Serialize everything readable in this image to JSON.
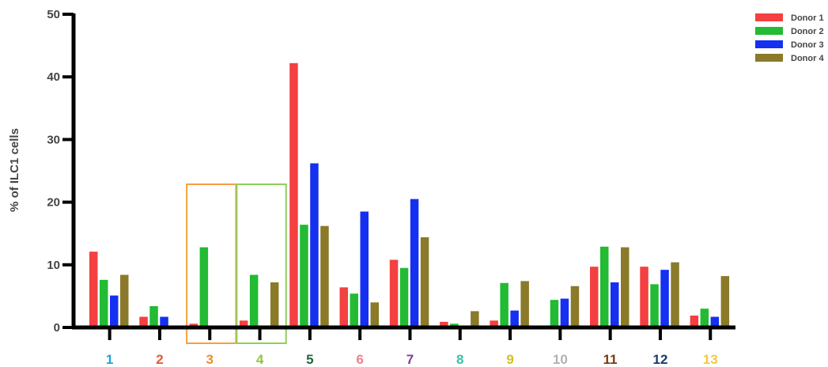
{
  "chart_data": {
    "type": "bar",
    "ylabel": "% of ILC1 cells",
    "ylim": [
      0,
      50
    ],
    "yticks": [
      0,
      10,
      20,
      30,
      40,
      50
    ],
    "grid": false,
    "legend_position": "top-right",
    "categories": [
      "1",
      "2",
      "3",
      "4",
      "5",
      "6",
      "7",
      "8",
      "9",
      "10",
      "11",
      "12",
      "13"
    ],
    "category_colors": [
      "#1fa3d8",
      "#e8563a",
      "#f28c28",
      "#8cc63f",
      "#1e6b3a",
      "#f08090",
      "#7b3fa0",
      "#36c3a6",
      "#d4c21a",
      "#b0b0b8",
      "#7a3a10",
      "#1a3a6e",
      "#f7c93a"
    ],
    "series": [
      {
        "name": "Donor 1",
        "color": "#f44040",
        "values": [
          12.1,
          1.7,
          0.6,
          1.1,
          42.2,
          6.4,
          10.8,
          0.9,
          1.1,
          0.3,
          9.7,
          9.7,
          1.9
        ]
      },
      {
        "name": "Donor 2",
        "color": "#22bb33",
        "values": [
          7.6,
          3.4,
          12.8,
          8.4,
          16.4,
          5.4,
          9.5,
          0.6,
          7.1,
          4.4,
          12.9,
          6.9,
          3.0
        ]
      },
      {
        "name": "Donor 3",
        "color": "#1530f0",
        "values": [
          5.1,
          1.7,
          0.3,
          0.3,
          26.2,
          18.5,
          20.5,
          0.3,
          2.7,
          4.6,
          7.2,
          9.2,
          1.7
        ]
      },
      {
        "name": "Donor 4",
        "color": "#8a7a2a",
        "values": [
          8.4,
          0.0,
          0.0,
          7.2,
          16.2,
          4.0,
          14.4,
          2.6,
          7.4,
          6.6,
          12.8,
          10.4,
          8.2
        ]
      }
    ],
    "highlights": [
      {
        "category": "3",
        "color": "#f5a040"
      },
      {
        "category": "4",
        "color": "#8cd05a"
      }
    ]
  }
}
